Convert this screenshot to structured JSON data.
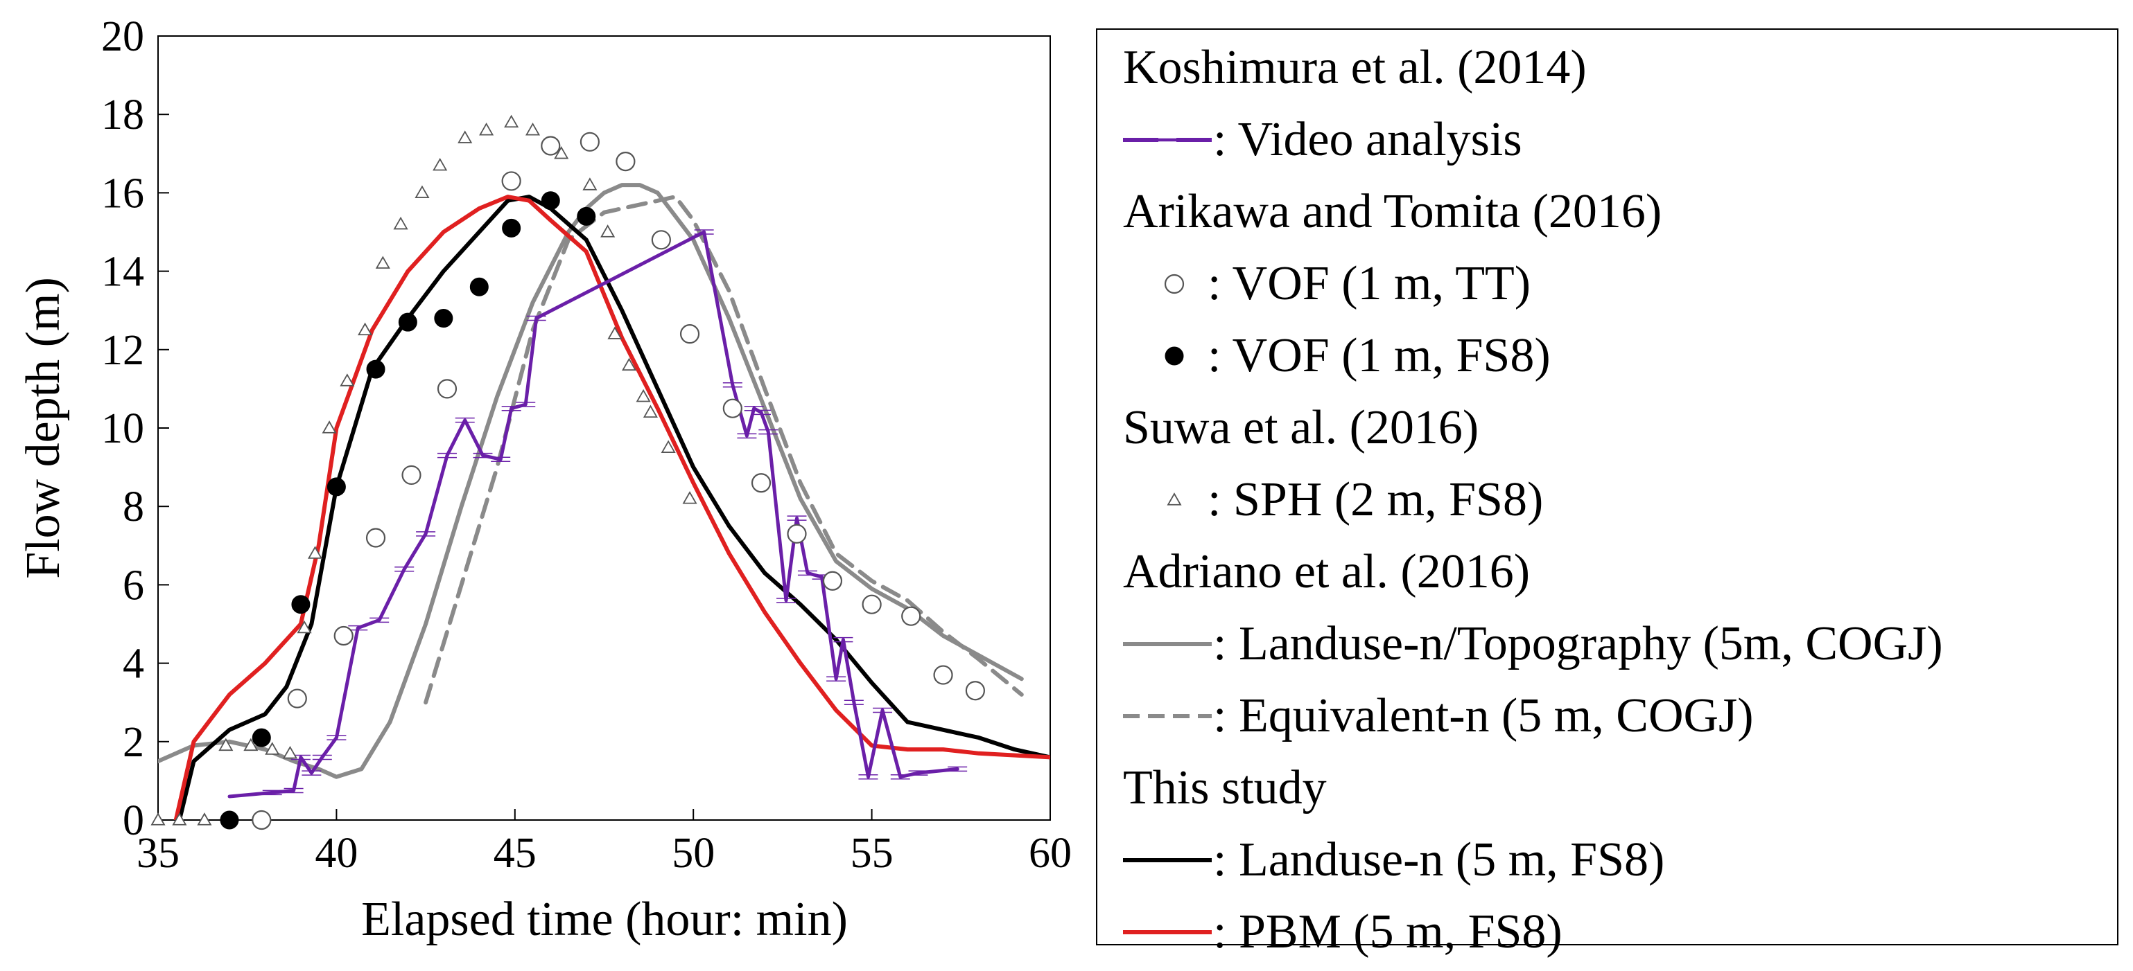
{
  "chart_data": {
    "type": "line",
    "title": "",
    "xlabel": "Elapsed time (hour: min)",
    "ylabel": "Flow depth (m)",
    "xlim": [
      35,
      60
    ],
    "ylim": [
      0,
      20
    ],
    "xticks": [
      35,
      40,
      45,
      50,
      55,
      60
    ],
    "yticks": [
      0,
      2,
      4,
      6,
      8,
      10,
      12,
      14,
      16,
      18,
      20
    ],
    "grid": false,
    "legend_position": "right, outside plot",
    "legend": {
      "groups": [
        {
          "heading": "Koshimura et al. (2014)",
          "entries": [
            {
              "label": ": Video analysis",
              "ref": "video"
            }
          ]
        },
        {
          "heading": "Arikawa and Tomita (2016)",
          "entries": [
            {
              "label": ": VOF (1 m, TT)",
              "ref": "vof_tt"
            },
            {
              "label": ": VOF (1 m, FS8)",
              "ref": "vof_fs8"
            }
          ]
        },
        {
          "heading": "Suwa et al. (2016)",
          "entries": [
            {
              "label": ": SPH (2 m, FS8)",
              "ref": "sph"
            }
          ]
        },
        {
          "heading": "Adriano et al. (2016)",
          "entries": [
            {
              "label": ": Landuse-n/Topography (5m, COGJ)",
              "ref": "adriano_topo"
            },
            {
              "label": ": Equivalent-n (5 m, COGJ)",
              "ref": "adriano_equiv"
            }
          ]
        },
        {
          "heading": "This study",
          "entries": [
            {
              "label": ": Landuse-n (5 m, FS8)",
              "ref": "landuse"
            },
            {
              "label": ": PBM (5 m, FS8)",
              "ref": "pbm"
            }
          ]
        }
      ]
    },
    "series": [
      {
        "id": "video",
        "name": "Video analysis",
        "kind": "line-errorbar",
        "color": "#6a1fa8",
        "x": [
          37.0,
          38.2,
          38.8,
          39.0,
          39.3,
          39.6,
          40.0,
          40.6,
          41.2,
          41.9,
          42.5,
          43.1,
          43.6,
          44.1,
          44.6,
          44.9,
          45.3,
          45.6,
          50.3,
          51.1,
          51.5,
          51.7,
          51.9,
          52.1,
          52.6,
          52.9,
          53.2,
          53.6,
          54.0,
          54.2,
          54.5,
          54.9,
          55.3,
          55.8,
          56.3,
          57.4
        ],
        "y": [
          0.6,
          0.7,
          0.75,
          1.6,
          1.2,
          1.6,
          2.1,
          4.9,
          5.1,
          6.4,
          7.3,
          9.3,
          10.2,
          9.3,
          9.2,
          10.5,
          10.6,
          12.8,
          15.0,
          11.1,
          9.8,
          10.5,
          10.4,
          9.9,
          5.6,
          7.7,
          6.3,
          6.2,
          3.6,
          4.6,
          3.0,
          1.1,
          2.8,
          1.1,
          1.2,
          1.3
        ]
      },
      {
        "id": "vof_tt",
        "name": "VOF (1 m, TT)",
        "kind": "scatter",
        "marker": "open-circle",
        "x": [
          37.9,
          38.9,
          40.2,
          41.1,
          42.1,
          43.1,
          44.9,
          46.0,
          47.1,
          48.1,
          49.1,
          49.9,
          51.1,
          51.9,
          52.9,
          53.9,
          55.0,
          56.1,
          57.0,
          57.9
        ],
        "y": [
          0.0,
          3.1,
          4.7,
          7.2,
          8.8,
          11.0,
          16.3,
          17.2,
          17.3,
          16.8,
          14.8,
          12.4,
          10.5,
          8.6,
          7.3,
          6.1,
          5.5,
          5.2,
          3.7,
          3.3
        ]
      },
      {
        "id": "vof_fs8",
        "name": "VOF (1 m, FS8)",
        "kind": "scatter",
        "marker": "filled-circle",
        "x": [
          37.0,
          37.9,
          39.0,
          40.0,
          41.1,
          42.0,
          43.0,
          44.0,
          44.9,
          46.0,
          47.0
        ],
        "y": [
          0.0,
          2.1,
          5.5,
          8.5,
          11.5,
          12.7,
          12.8,
          13.6,
          15.1,
          15.8,
          15.4
        ]
      },
      {
        "id": "sph",
        "name": "SPH (2 m, FS8)",
        "kind": "scatter",
        "marker": "open-triangle",
        "x": [
          35.0,
          35.6,
          36.3,
          36.9,
          37.6,
          38.2,
          38.7,
          39.1,
          39.4,
          39.8,
          40.3,
          40.8,
          41.3,
          41.8,
          42.4,
          42.9,
          43.6,
          44.2,
          44.9,
          45.5,
          46.3,
          47.1,
          47.6,
          47.8,
          48.2,
          48.6,
          48.8,
          49.3,
          49.9
        ],
        "y": [
          0.0,
          0.0,
          0.0,
          1.9,
          1.9,
          1.8,
          1.7,
          4.9,
          6.8,
          10.0,
          11.2,
          12.5,
          14.2,
          15.2,
          16.0,
          16.7,
          17.4,
          17.6,
          17.8,
          17.6,
          17.0,
          16.2,
          15.0,
          12.4,
          11.6,
          10.8,
          10.4,
          9.5,
          8.2
        ]
      },
      {
        "id": "adriano_topo",
        "name": "Landuse-n/Topography (5m, COGJ)",
        "kind": "line",
        "color": "#8a8a8a",
        "dash": "solid",
        "x": [
          35.0,
          36.0,
          37.0,
          38.0,
          38.8,
          39.5,
          40.0,
          40.7,
          41.5,
          42.5,
          43.5,
          44.5,
          45.5,
          46.5,
          47.0,
          47.5,
          48.0,
          48.5,
          49.0,
          50.0,
          51.0,
          52.0,
          53.0,
          54.0,
          55.0,
          56.0,
          57.0,
          58.0,
          59.2
        ],
        "y": [
          1.5,
          1.9,
          2.0,
          1.8,
          1.5,
          1.3,
          1.1,
          1.3,
          2.5,
          5.0,
          8.0,
          10.8,
          13.2,
          15.0,
          15.6,
          16.0,
          16.2,
          16.2,
          16.0,
          14.8,
          12.8,
          10.5,
          8.2,
          6.6,
          5.9,
          5.4,
          4.7,
          4.2,
          3.6
        ]
      },
      {
        "id": "adriano_equiv",
        "name": "Equivalent-n (5 m, COGJ)",
        "kind": "line",
        "color": "#8a8a8a",
        "dash": "dashed",
        "x": [
          42.5,
          43.5,
          44.5,
          45.5,
          46.5,
          47.5,
          48.5,
          49.5,
          50.0,
          51.0,
          52.0,
          53.0,
          54.0,
          55.0,
          56.0,
          57.0,
          58.0,
          59.2
        ],
        "y": [
          3.0,
          6.0,
          9.0,
          12.5,
          14.8,
          15.5,
          15.7,
          15.9,
          15.3,
          13.5,
          11.0,
          8.6,
          6.8,
          6.1,
          5.6,
          4.8,
          4.1,
          3.2
        ]
      },
      {
        "id": "landuse",
        "name": "Landuse-n (5 m, FS8)",
        "kind": "line",
        "color": "#000000",
        "dash": "solid",
        "x": [
          35.6,
          36.0,
          37.0,
          38.0,
          38.6,
          39.3,
          40.0,
          41.0,
          42.0,
          43.0,
          44.0,
          44.8,
          45.4,
          46.0,
          47.0,
          48.0,
          49.0,
          50.0,
          51.0,
          52.0,
          53.0,
          54.0,
          55.0,
          56.0,
          57.0,
          58.0,
          59.0,
          60.0
        ],
        "y": [
          0.0,
          1.5,
          2.3,
          2.7,
          3.4,
          5.0,
          8.5,
          11.5,
          12.8,
          14.0,
          15.0,
          15.8,
          15.9,
          15.6,
          14.8,
          13.0,
          11.0,
          9.0,
          7.5,
          6.3,
          5.5,
          4.6,
          3.5,
          2.5,
          2.3,
          2.1,
          1.8,
          1.6
        ]
      },
      {
        "id": "pbm",
        "name": "PBM (5 m, FS8)",
        "kind": "line",
        "color": "#e02020",
        "dash": "solid",
        "x": [
          35.5,
          36.0,
          36.5,
          37.0,
          38.0,
          39.0,
          39.5,
          40.0,
          41.0,
          42.0,
          43.0,
          44.0,
          44.8,
          45.4,
          46.0,
          47.0,
          48.0,
          49.0,
          50.0,
          51.0,
          52.0,
          53.0,
          54.0,
          55.0,
          56.0,
          57.0,
          58.0,
          60.0
        ],
        "y": [
          0.0,
          2.0,
          2.6,
          3.2,
          4.0,
          5.0,
          7.0,
          10.0,
          12.5,
          14.0,
          15.0,
          15.6,
          15.9,
          15.8,
          15.3,
          14.5,
          12.3,
          10.5,
          8.6,
          6.8,
          5.3,
          4.0,
          2.8,
          1.9,
          1.8,
          1.8,
          1.7,
          1.6
        ]
      }
    ]
  }
}
